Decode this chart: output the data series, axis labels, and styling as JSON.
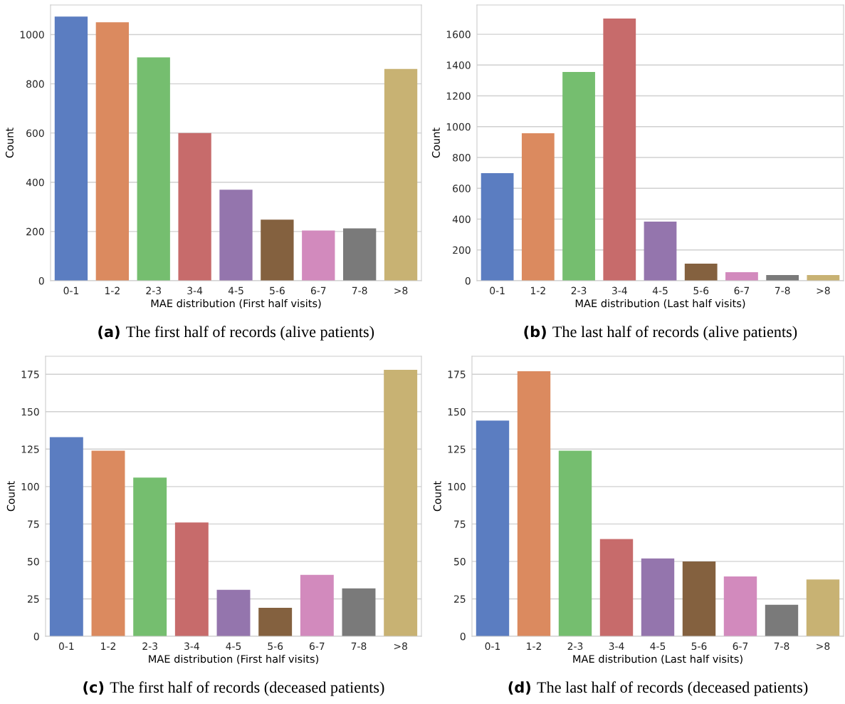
{
  "chart_data": [
    {
      "type": "bar",
      "xlabel": "MAE distribution (First half visits)",
      "ylabel": "Count",
      "categories": [
        "0-1",
        "1-2",
        "2-3",
        "3-4",
        "4-5",
        "5-6",
        "6-7",
        "7-8",
        ">8"
      ],
      "values": [
        1073,
        1050,
        907,
        600,
        370,
        248,
        204,
        213,
        860
      ],
      "colors": [
        "#5b7dc1",
        "#db8a5f",
        "#75be6f",
        "#c76b6b",
        "#9475ad",
        "#84613f",
        "#d28abd",
        "#7a7a7a",
        "#c8b273"
      ],
      "ylim": [
        0,
        1120
      ],
      "yticks": [
        0,
        200,
        400,
        600,
        800,
        1000
      ],
      "grid": "y",
      "annotations": [
        "(a)",
        "The first half of records (alive patients)"
      ]
    },
    {
      "type": "bar",
      "xlabel": "MAE distribution (Last half visits)",
      "ylabel": "Count",
      "categories": [
        "0-1",
        "1-2",
        "2-3",
        "3-4",
        "4-5",
        "5-6",
        "6-7",
        "7-8",
        ">8"
      ],
      "values": [
        698,
        957,
        1355,
        1702,
        384,
        111,
        55,
        37,
        37
      ],
      "colors": [
        "#5b7dc1",
        "#db8a5f",
        "#75be6f",
        "#c76b6b",
        "#9475ad",
        "#84613f",
        "#d28abd",
        "#7a7a7a",
        "#c8b273"
      ],
      "ylim": [
        0,
        1790
      ],
      "yticks": [
        0,
        200,
        400,
        600,
        800,
        1000,
        1200,
        1400,
        1600
      ],
      "grid": "y",
      "annotations": [
        "(b)",
        "The last half of records (alive patients)"
      ]
    },
    {
      "type": "bar",
      "xlabel": "MAE distribution (First half visits)",
      "ylabel": "Count",
      "categories": [
        "0-1",
        "1-2",
        "2-3",
        "3-4",
        "4-5",
        "5-6",
        "6-7",
        "7-8",
        ">8"
      ],
      "values": [
        133,
        124,
        106,
        76,
        31,
        19,
        41,
        32,
        178
      ],
      "colors": [
        "#5b7dc1",
        "#db8a5f",
        "#75be6f",
        "#c76b6b",
        "#9475ad",
        "#84613f",
        "#d28abd",
        "#7a7a7a",
        "#c8b273"
      ],
      "ylim": [
        0,
        187
      ],
      "yticks": [
        0,
        25,
        50,
        75,
        100,
        125,
        150,
        175
      ],
      "grid": "y",
      "annotations": [
        "(c)",
        "The first half of records (deceased patients)"
      ]
    },
    {
      "type": "bar",
      "xlabel": "MAE distribution (Last half visits)",
      "ylabel": "Count",
      "categories": [
        "0-1",
        "1-2",
        "2-3",
        "3-4",
        "4-5",
        "5-6",
        "6-7",
        "7-8",
        ">8"
      ],
      "values": [
        144,
        177,
        124,
        65,
        52,
        50,
        40,
        21,
        38
      ],
      "colors": [
        "#5b7dc1",
        "#db8a5f",
        "#75be6f",
        "#c76b6b",
        "#9475ad",
        "#84613f",
        "#d28abd",
        "#7a7a7a",
        "#c8b273"
      ],
      "ylim": [
        0,
        187
      ],
      "yticks": [
        0,
        25,
        50,
        75,
        100,
        125,
        150,
        175
      ],
      "grid": "y",
      "annotations": [
        "(d)",
        "The last half of records (deceased patients)"
      ]
    }
  ]
}
